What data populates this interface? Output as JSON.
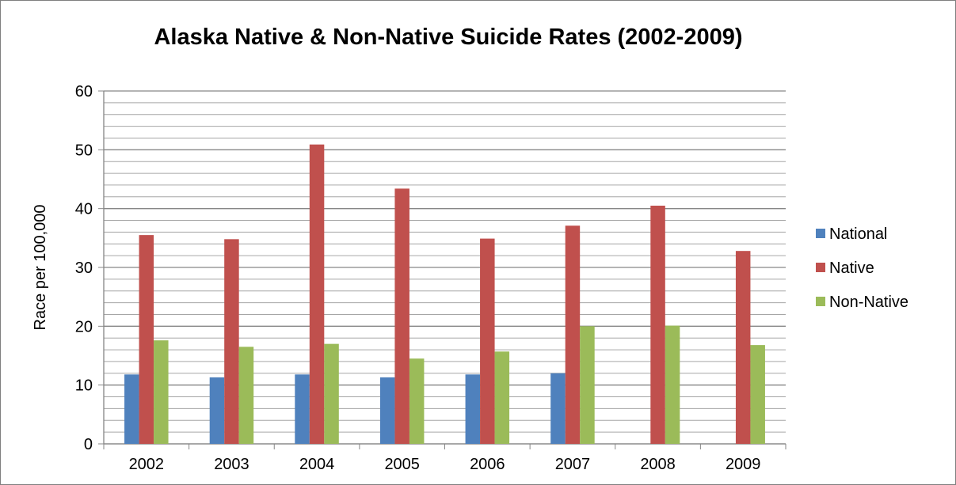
{
  "chart_data": {
    "type": "bar",
    "title": "Alaska Native & Non-Native Suicide Rates (2002-2009)",
    "xlabel": "",
    "ylabel": "Race per 100,000",
    "categories": [
      "2002",
      "2003",
      "2004",
      "2005",
      "2006",
      "2007",
      "2008",
      "2009"
    ],
    "ylim": [
      0,
      60
    ],
    "yticks": [
      0,
      10,
      20,
      30,
      40,
      50,
      60
    ],
    "grid": true,
    "minor_grid_step": 2,
    "legend_position": "right",
    "series": [
      {
        "name": "National",
        "color": "#4f81bd",
        "values": [
          11.8,
          11.3,
          11.8,
          11.3,
          11.8,
          12.0,
          null,
          null
        ]
      },
      {
        "name": "Native",
        "color": "#c0504d",
        "values": [
          35.5,
          34.8,
          50.9,
          43.4,
          34.9,
          37.1,
          40.5,
          32.8
        ]
      },
      {
        "name": "Non-Native",
        "color": "#9bbb59",
        "values": [
          17.6,
          16.5,
          17.0,
          14.5,
          15.7,
          20.0,
          20.1,
          16.8
        ]
      }
    ]
  }
}
